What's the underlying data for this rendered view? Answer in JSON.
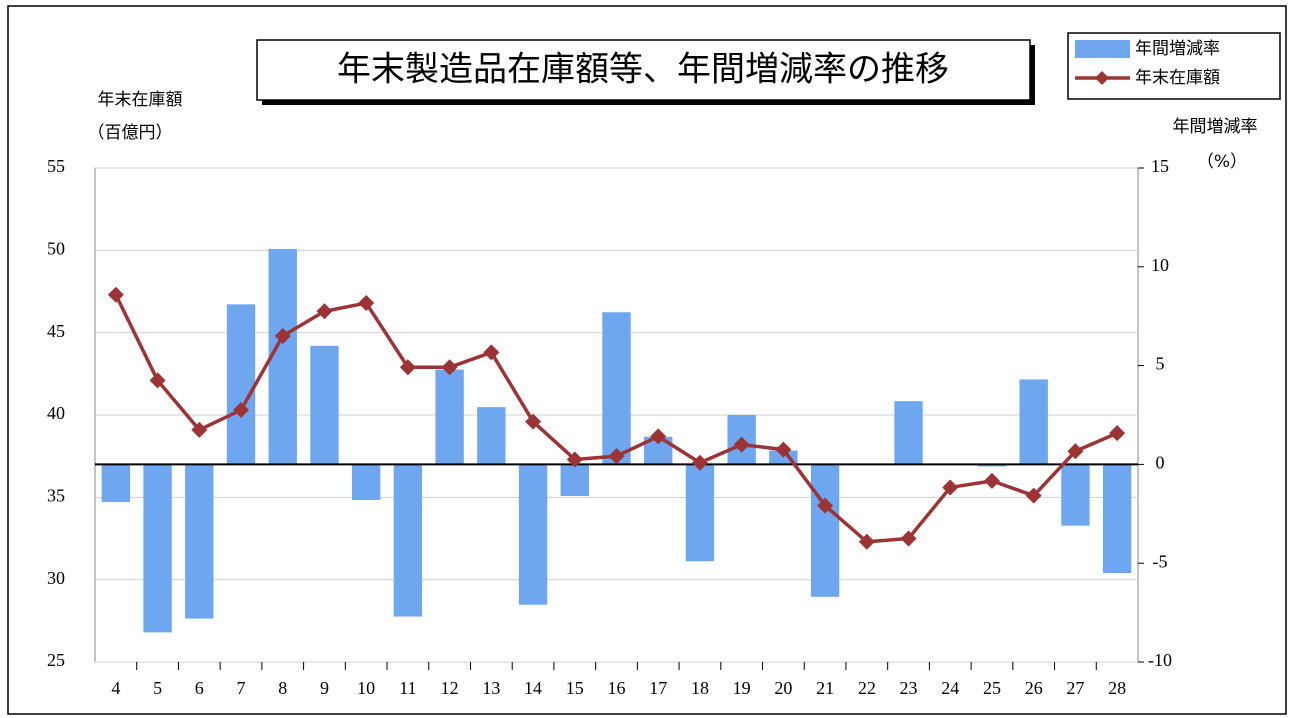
{
  "chart_data": {
    "type": "bar_line",
    "title": "年末製造品在庫額等、年間増減率の推移",
    "y_label": [
      "年末在庫額",
      "（百億円）"
    ],
    "y2_label": [
      "年間増減率",
      "（%）"
    ],
    "categories": [
      "4",
      "5",
      "6",
      "7",
      "8",
      "9",
      "10",
      "11",
      "12",
      "13",
      "14",
      "15",
      "16",
      "17",
      "18",
      "19",
      "20",
      "21",
      "22",
      "23",
      "24",
      "25",
      "26",
      "27",
      "28"
    ],
    "series": [
      {
        "name": "年間増減率",
        "type": "bar",
        "axis": "y2",
        "color": "#6ea6ef",
        "values": [
          -1.9,
          -8.5,
          -7.8,
          8.1,
          10.9,
          6.0,
          -1.8,
          -7.7,
          4.8,
          2.9,
          -7.1,
          -1.6,
          7.7,
          1.4,
          -4.9,
          2.5,
          0.7,
          -6.7,
          0,
          3.2,
          0,
          -0.1,
          4.3,
          -3.1,
          -5.5
        ]
      },
      {
        "name": "年末在庫額",
        "type": "line",
        "axis": "y",
        "color": "#9c3335",
        "values": [
          47.3,
          42.1,
          39.1,
          40.3,
          44.8,
          46.3,
          46.8,
          42.9,
          42.9,
          43.8,
          39.6,
          37.3,
          37.5,
          38.7,
          37.1,
          38.2,
          37.9,
          34.5,
          32.3,
          32.5,
          35.6,
          36.0,
          35.1,
          37.8,
          38.9
        ]
      }
    ],
    "ylim": [
      25,
      55
    ],
    "yticks": [
      25,
      30,
      35,
      40,
      45,
      50,
      55
    ],
    "y2lim": [
      -10,
      15
    ],
    "y2ticks": [
      -10,
      -5,
      0,
      5,
      10,
      15
    ],
    "grid": true,
    "legend": "top-right"
  }
}
